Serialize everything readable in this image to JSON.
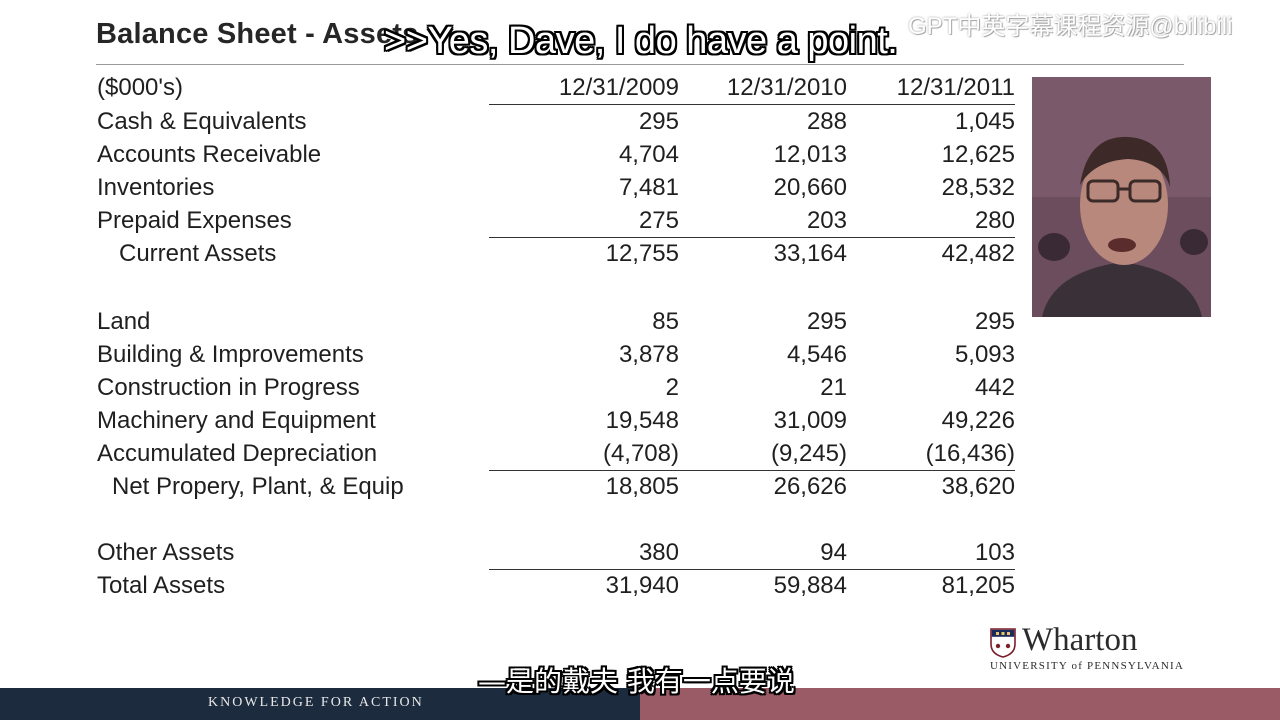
{
  "slide": {
    "title": "Balance Sheet - Assets",
    "units_label": "($000's)",
    "periods": [
      "12/31/2009",
      "12/31/2010",
      "12/31/2011"
    ]
  },
  "rows": [
    {
      "label": "Cash & Equivalents",
      "values": [
        "295",
        "288",
        "1,045"
      ]
    },
    {
      "label": "Accounts Receivable",
      "values": [
        "4,704",
        "12,013",
        "12,625"
      ]
    },
    {
      "label": "Inventories",
      "values": [
        "7,481",
        "20,660",
        "28,532"
      ]
    },
    {
      "label": "Prepaid Expenses",
      "values": [
        "275",
        "203",
        "280"
      ]
    },
    {
      "label": "Current Assets",
      "values": [
        "12,755",
        "33,164",
        "42,482"
      ]
    },
    {
      "label": "Land",
      "values": [
        "85",
        "295",
        "295"
      ]
    },
    {
      "label": "Building & Improvements",
      "values": [
        "3,878",
        "4,546",
        "5,093"
      ]
    },
    {
      "label": "Construction in Progress",
      "values": [
        "2",
        "21",
        "442"
      ]
    },
    {
      "label": "Machinery and Equipment",
      "values": [
        "19,548",
        "31,009",
        "49,226"
      ]
    },
    {
      "label": "Accumulated Depreciation",
      "values": [
        "(4,708)",
        "(9,245)",
        "(16,436)"
      ]
    },
    {
      "label": "Net Propery, Plant, & Equip",
      "values": [
        "18,805",
        "26,626",
        "38,620"
      ]
    },
    {
      "label": "Other Assets",
      "values": [
        "380",
        "94",
        "103"
      ]
    },
    {
      "label": "Total Assets",
      "values": [
        "31,940",
        "59,884",
        "81,205"
      ]
    }
  ],
  "overlay": {
    "caption_en": ">>Yes, Dave, I do have a point.",
    "caption_zh": "—是的戴夫 我有一点要说",
    "watermark": "GPT中英字幕课程资源@bilibili"
  },
  "branding": {
    "logo_name": "Wharton",
    "logo_sub": "UNIVERSITY of PENNSYLVANIA",
    "tagline": "KNOWLEDGE FOR ACTION",
    "colors": {
      "footer_navy": "#1d2b3f",
      "footer_rose": "#9a5a66"
    }
  }
}
